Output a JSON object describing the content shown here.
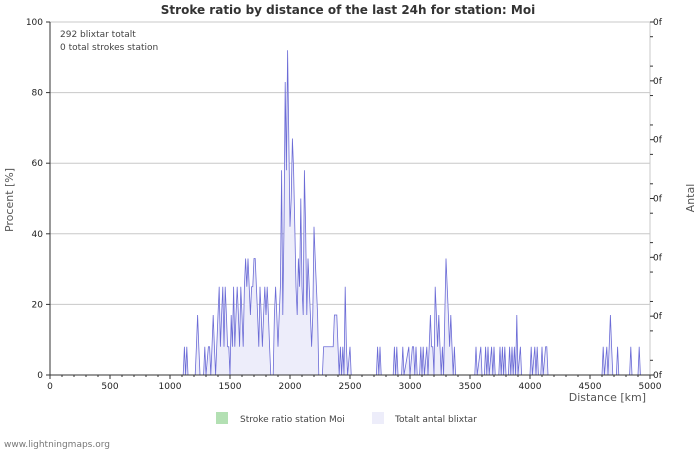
{
  "chart_data": {
    "type": "area",
    "title": "Stroke ratio by distance of the last 24h for station: Moi",
    "xlabel": "Distance   [km]",
    "ylabel": "Procent   [%]",
    "y2label": "Antal",
    "xlim": [
      0,
      5000
    ],
    "ylim": [
      0,
      100
    ],
    "x_ticks": [
      "0",
      "500",
      "1000",
      "1500",
      "2000",
      "2500",
      "3000",
      "3500",
      "4000",
      "4500",
      "5000"
    ],
    "y_ticks": [
      "0",
      "20",
      "40",
      "60",
      "80",
      "100"
    ],
    "y2_ticks": [
      "0f",
      "0f",
      "0f",
      "0f",
      "0f",
      "0f",
      "0f"
    ],
    "grid": true,
    "annotations": [
      "292 blixtar totalt",
      "0 total strokes station"
    ],
    "series": [
      {
        "name": "Stroke ratio station Moi",
        "color": "#b3e0b3",
        "values": []
      },
      {
        "name": "Totalt antal blixtar",
        "color": "#6b6bd6",
        "fill": "#ededfa",
        "points": [
          [
            0,
            0
          ],
          [
            1110,
            0
          ],
          [
            1120,
            8
          ],
          [
            1130,
            0
          ],
          [
            1140,
            8
          ],
          [
            1150,
            0
          ],
          [
            1210,
            0
          ],
          [
            1220,
            8
          ],
          [
            1230,
            17
          ],
          [
            1240,
            8
          ],
          [
            1250,
            0
          ],
          [
            1280,
            0
          ],
          [
            1290,
            8
          ],
          [
            1300,
            0
          ],
          [
            1320,
            8
          ],
          [
            1330,
            8
          ],
          [
            1340,
            0
          ],
          [
            1350,
            8
          ],
          [
            1360,
            17
          ],
          [
            1370,
            8
          ],
          [
            1380,
            0
          ],
          [
            1400,
            17
          ],
          [
            1410,
            25
          ],
          [
            1420,
            8
          ],
          [
            1430,
            17
          ],
          [
            1440,
            25
          ],
          [
            1450,
            8
          ],
          [
            1460,
            25
          ],
          [
            1470,
            17
          ],
          [
            1480,
            8
          ],
          [
            1490,
            8
          ],
          [
            1500,
            0
          ],
          [
            1510,
            17
          ],
          [
            1520,
            8
          ],
          [
            1530,
            25
          ],
          [
            1540,
            8
          ],
          [
            1550,
            17
          ],
          [
            1560,
            25
          ],
          [
            1570,
            17
          ],
          [
            1580,
            8
          ],
          [
            1590,
            25
          ],
          [
            1600,
            17
          ],
          [
            1610,
            8
          ],
          [
            1620,
            25
          ],
          [
            1630,
            33
          ],
          [
            1640,
            25
          ],
          [
            1650,
            33
          ],
          [
            1660,
            25
          ],
          [
            1670,
            17
          ],
          [
            1680,
            25
          ],
          [
            1690,
            25
          ],
          [
            1700,
            33
          ],
          [
            1710,
            33
          ],
          [
            1720,
            25
          ],
          [
            1730,
            17
          ],
          [
            1740,
            8
          ],
          [
            1750,
            25
          ],
          [
            1760,
            17
          ],
          [
            1770,
            8
          ],
          [
            1780,
            17
          ],
          [
            1790,
            25
          ],
          [
            1800,
            17
          ],
          [
            1810,
            25
          ],
          [
            1820,
            17
          ],
          [
            1830,
            8
          ],
          [
            1840,
            0
          ],
          [
            1860,
            0
          ],
          [
            1870,
            17
          ],
          [
            1880,
            25
          ],
          [
            1890,
            17
          ],
          [
            1900,
            8
          ],
          [
            1910,
            17
          ],
          [
            1920,
            25
          ],
          [
            1930,
            58
          ],
          [
            1940,
            17
          ],
          [
            1950,
            42
          ],
          [
            1960,
            83
          ],
          [
            1970,
            58
          ],
          [
            1980,
            92
          ],
          [
            1990,
            67
          ],
          [
            2000,
            42
          ],
          [
            2010,
            50
          ],
          [
            2020,
            67
          ],
          [
            2030,
            58
          ],
          [
            2040,
            42
          ],
          [
            2050,
            25
          ],
          [
            2060,
            17
          ],
          [
            2070,
            33
          ],
          [
            2080,
            25
          ],
          [
            2090,
            50
          ],
          [
            2100,
            25
          ],
          [
            2110,
            17
          ],
          [
            2120,
            58
          ],
          [
            2130,
            42
          ],
          [
            2140,
            17
          ],
          [
            2150,
            33
          ],
          [
            2160,
            25
          ],
          [
            2170,
            17
          ],
          [
            2180,
            8
          ],
          [
            2190,
            17
          ],
          [
            2200,
            42
          ],
          [
            2210,
            33
          ],
          [
            2220,
            25
          ],
          [
            2230,
            17
          ],
          [
            2240,
            0
          ],
          [
            2270,
            0
          ],
          [
            2280,
            8
          ],
          [
            2290,
            8
          ],
          [
            2300,
            8
          ],
          [
            2310,
            8
          ],
          [
            2320,
            8
          ],
          [
            2330,
            8
          ],
          [
            2340,
            8
          ],
          [
            2350,
            8
          ],
          [
            2360,
            8
          ],
          [
            2370,
            17
          ],
          [
            2380,
            17
          ],
          [
            2390,
            17
          ],
          [
            2400,
            8
          ],
          [
            2410,
            0
          ],
          [
            2420,
            8
          ],
          [
            2430,
            0
          ],
          [
            2440,
            8
          ],
          [
            2450,
            0
          ],
          [
            2460,
            25
          ],
          [
            2470,
            8
          ],
          [
            2480,
            0
          ],
          [
            2500,
            8
          ],
          [
            2510,
            0
          ],
          [
            2720,
            0
          ],
          [
            2730,
            8
          ],
          [
            2740,
            0
          ],
          [
            2750,
            8
          ],
          [
            2760,
            0
          ],
          [
            2860,
            0
          ],
          [
            2870,
            8
          ],
          [
            2880,
            0
          ],
          [
            2890,
            8
          ],
          [
            2900,
            0
          ],
          [
            2930,
            0
          ],
          [
            2940,
            8
          ],
          [
            2950,
            0
          ],
          [
            2990,
            8
          ],
          [
            3000,
            0
          ],
          [
            3020,
            8
          ],
          [
            3030,
            8
          ],
          [
            3040,
            0
          ],
          [
            3050,
            8
          ],
          [
            3060,
            0
          ],
          [
            3080,
            0
          ],
          [
            3090,
            8
          ],
          [
            3100,
            0
          ],
          [
            3110,
            8
          ],
          [
            3120,
            0
          ],
          [
            3140,
            8
          ],
          [
            3150,
            0
          ],
          [
            3160,
            8
          ],
          [
            3170,
            17
          ],
          [
            3180,
            8
          ],
          [
            3190,
            8
          ],
          [
            3200,
            0
          ],
          [
            3210,
            25
          ],
          [
            3220,
            17
          ],
          [
            3230,
            8
          ],
          [
            3240,
            17
          ],
          [
            3250,
            8
          ],
          [
            3260,
            0
          ],
          [
            3270,
            8
          ],
          [
            3280,
            0
          ],
          [
            3290,
            17
          ],
          [
            3300,
            33
          ],
          [
            3310,
            25
          ],
          [
            3320,
            17
          ],
          [
            3330,
            8
          ],
          [
            3340,
            17
          ],
          [
            3350,
            8
          ],
          [
            3360,
            0
          ],
          [
            3370,
            8
          ],
          [
            3380,
            0
          ],
          [
            3540,
            0
          ],
          [
            3550,
            8
          ],
          [
            3560,
            0
          ],
          [
            3590,
            8
          ],
          [
            3600,
            0
          ],
          [
            3620,
            0
          ],
          [
            3630,
            8
          ],
          [
            3640,
            0
          ],
          [
            3650,
            8
          ],
          [
            3660,
            0
          ],
          [
            3680,
            8
          ],
          [
            3690,
            0
          ],
          [
            3700,
            8
          ],
          [
            3710,
            0
          ],
          [
            3740,
            0
          ],
          [
            3750,
            8
          ],
          [
            3760,
            0
          ],
          [
            3770,
            8
          ],
          [
            3780,
            0
          ],
          [
            3790,
            8
          ],
          [
            3800,
            0
          ],
          [
            3820,
            0
          ],
          [
            3830,
            8
          ],
          [
            3840,
            0
          ],
          [
            3850,
            8
          ],
          [
            3860,
            0
          ],
          [
            3870,
            8
          ],
          [
            3880,
            0
          ],
          [
            3890,
            17
          ],
          [
            3900,
            0
          ],
          [
            3920,
            8
          ],
          [
            3930,
            0
          ],
          [
            4000,
            0
          ],
          [
            4010,
            8
          ],
          [
            4020,
            0
          ],
          [
            4040,
            8
          ],
          [
            4050,
            0
          ],
          [
            4060,
            8
          ],
          [
            4070,
            0
          ],
          [
            4090,
            0
          ],
          [
            4100,
            8
          ],
          [
            4110,
            0
          ],
          [
            4130,
            8
          ],
          [
            4140,
            8
          ],
          [
            4150,
            0
          ],
          [
            4600,
            0
          ],
          [
            4610,
            8
          ],
          [
            4620,
            0
          ],
          [
            4640,
            8
          ],
          [
            4650,
            0
          ],
          [
            4660,
            8
          ],
          [
            4670,
            17
          ],
          [
            4680,
            8
          ],
          [
            4690,
            0
          ],
          [
            4720,
            0
          ],
          [
            4730,
            8
          ],
          [
            4740,
            0
          ],
          [
            4830,
            0
          ],
          [
            4840,
            8
          ],
          [
            4850,
            0
          ],
          [
            4900,
            0
          ],
          [
            4910,
            8
          ],
          [
            4920,
            0
          ],
          [
            5000,
            0
          ]
        ]
      }
    ]
  },
  "credit": "www.lightningmaps.org"
}
